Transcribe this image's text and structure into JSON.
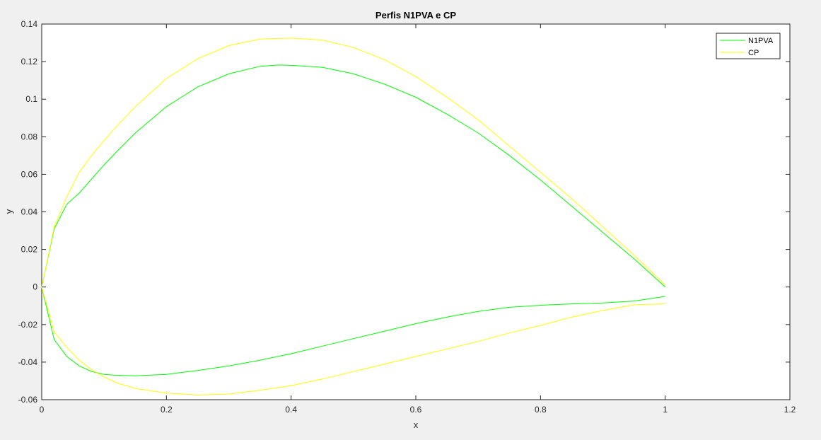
{
  "chart_data": {
    "type": "line",
    "title": "Perfis N1PVA e CP",
    "xlabel": "x",
    "ylabel": "y",
    "xlim": [
      0,
      1.2
    ],
    "ylim": [
      -0.06,
      0.14
    ],
    "xticks": [
      "0",
      "0.2",
      "0.4",
      "0.6",
      "0.8",
      "1",
      "1.2"
    ],
    "yticks": [
      "-0.06",
      "-0.04",
      "-0.02",
      "0",
      "0.02",
      "0.04",
      "0.06",
      "0.08",
      "0.1",
      "0.12",
      "0.14"
    ],
    "grid": false,
    "legend_position": "top-right",
    "series": [
      {
        "name": "N1PVA",
        "color": "#00ff00",
        "x": [
          1.0,
          0.95,
          0.9,
          0.85,
          0.8,
          0.75,
          0.7,
          0.65,
          0.6,
          0.55,
          0.5,
          0.45,
          0.4,
          0.38,
          0.35,
          0.3,
          0.25,
          0.2,
          0.15,
          0.12,
          0.1,
          0.08,
          0.06,
          0.04,
          0.02,
          0.0,
          0.02,
          0.04,
          0.06,
          0.08,
          0.1,
          0.12,
          0.15,
          0.2,
          0.25,
          0.3,
          0.35,
          0.4,
          0.45,
          0.5,
          0.55,
          0.6,
          0.65,
          0.7,
          0.75,
          0.8,
          0.85,
          0.9,
          0.95,
          1.0
        ],
        "y": [
          0.0,
          0.015,
          0.029,
          0.043,
          0.057,
          0.07,
          0.082,
          0.092,
          0.101,
          0.108,
          0.1135,
          0.117,
          0.118,
          0.1182,
          0.1175,
          0.1135,
          0.1065,
          0.096,
          0.082,
          0.072,
          0.065,
          0.0575,
          0.05,
          0.044,
          0.031,
          0.0,
          -0.028,
          -0.037,
          -0.042,
          -0.045,
          -0.0465,
          -0.047,
          -0.0473,
          -0.0465,
          -0.0445,
          -0.042,
          -0.039,
          -0.0355,
          -0.0315,
          -0.0275,
          -0.0235,
          -0.0195,
          -0.016,
          -0.013,
          -0.0108,
          -0.0097,
          -0.009,
          -0.0085,
          -0.0075,
          -0.005
        ]
      },
      {
        "name": "CP",
        "color": "#ffff00",
        "x": [
          1.0,
          0.95,
          0.9,
          0.85,
          0.8,
          0.75,
          0.7,
          0.65,
          0.6,
          0.55,
          0.5,
          0.45,
          0.4,
          0.35,
          0.3,
          0.25,
          0.2,
          0.15,
          0.12,
          0.1,
          0.08,
          0.06,
          0.04,
          0.02,
          0.0,
          0.02,
          0.04,
          0.06,
          0.08,
          0.1,
          0.12,
          0.15,
          0.2,
          0.25,
          0.3,
          0.35,
          0.4,
          0.45,
          0.5,
          0.55,
          0.6,
          0.65,
          0.7,
          0.75,
          0.8,
          0.85,
          0.9,
          0.95,
          1.0
        ],
        "y": [
          0.001,
          0.017,
          0.032,
          0.047,
          0.061,
          0.075,
          0.089,
          0.101,
          0.112,
          0.121,
          0.1275,
          0.1315,
          0.1325,
          0.132,
          0.1285,
          0.1215,
          0.111,
          0.096,
          0.0855,
          0.078,
          0.07,
          0.061,
          0.048,
          0.032,
          0.0,
          -0.024,
          -0.032,
          -0.039,
          -0.044,
          -0.048,
          -0.051,
          -0.054,
          -0.0565,
          -0.0575,
          -0.057,
          -0.055,
          -0.0525,
          -0.049,
          -0.045,
          -0.041,
          -0.037,
          -0.033,
          -0.029,
          -0.0245,
          -0.0205,
          -0.016,
          -0.0125,
          -0.0095,
          -0.009
        ]
      }
    ]
  }
}
